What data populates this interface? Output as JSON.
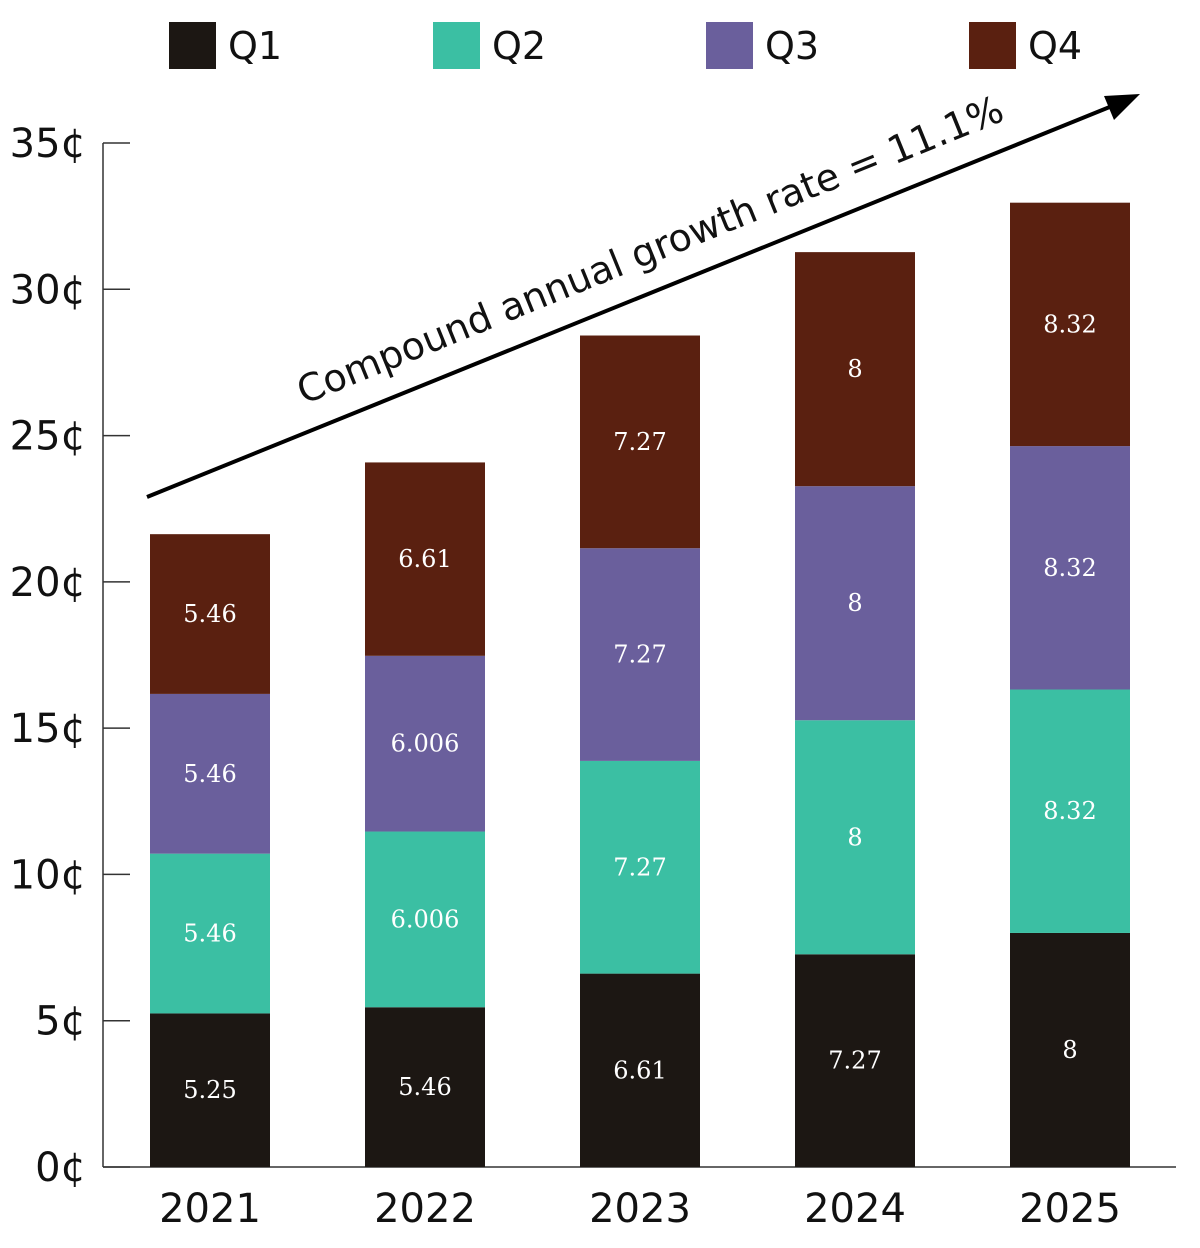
{
  "chart_data": {
    "type": "bar",
    "stacked": true,
    "categories": [
      "2021",
      "2022",
      "2023",
      "2024",
      "2025"
    ],
    "series": [
      {
        "name": "Q1",
        "color": "#1c1713",
        "values": [
          5.25,
          5.46,
          6.61,
          7.27,
          8
        ]
      },
      {
        "name": "Q2",
        "color": "#3bbfa3",
        "values": [
          5.46,
          6.006,
          7.27,
          8,
          8.32
        ]
      },
      {
        "name": "Q3",
        "color": "#6a5f9c",
        "values": [
          5.46,
          6.006,
          7.27,
          8,
          8.32
        ]
      },
      {
        "name": "Q4",
        "color": "#5a2010",
        "values": [
          5.46,
          6.61,
          7.27,
          8,
          8.32
        ]
      }
    ],
    "data_labels": [
      [
        "5.25",
        "5.46",
        "6.61",
        "7.27",
        "8"
      ],
      [
        "5.46",
        "6.006",
        "7.27",
        "8",
        "8.32"
      ],
      [
        "5.46",
        "6.006",
        "7.27",
        "8",
        "8.32"
      ],
      [
        "5.46",
        "6.61",
        "7.27",
        "8",
        "8.32"
      ]
    ],
    "yticks": [
      0,
      5,
      10,
      15,
      20,
      25,
      30,
      35
    ],
    "ytick_labels": [
      "0¢",
      "5¢",
      "10¢",
      "15¢",
      "20¢",
      "25¢",
      "30¢",
      "35¢"
    ],
    "ylim": [
      0,
      35
    ],
    "title": "",
    "xlabel": "",
    "ylabel": "",
    "grid": false,
    "legend_position": "top",
    "annotation": "Compound annual growth rate = 11.1%"
  }
}
